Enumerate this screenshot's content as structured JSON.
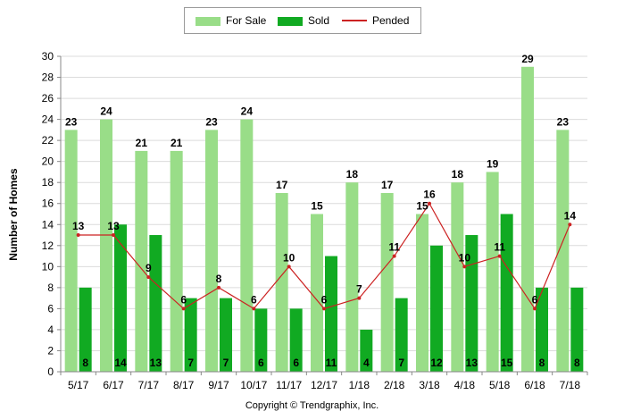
{
  "chart_data": {
    "type": "bar",
    "categories": [
      "5/17",
      "6/17",
      "7/17",
      "8/17",
      "9/17",
      "10/17",
      "11/17",
      "12/17",
      "1/18",
      "2/18",
      "3/18",
      "4/18",
      "5/18",
      "6/18",
      "7/18"
    ],
    "series": [
      {
        "name": "For Sale",
        "type": "bar",
        "color": "#99dd88",
        "values": [
          23,
          24,
          21,
          21,
          23,
          24,
          17,
          15,
          18,
          17,
          15,
          18,
          19,
          29,
          23
        ]
      },
      {
        "name": "Sold",
        "type": "bar",
        "color": "#11aa22",
        "values": [
          8,
          14,
          13,
          7,
          7,
          6,
          6,
          11,
          4,
          7,
          12,
          13,
          15,
          8,
          8
        ]
      },
      {
        "name": "Pended",
        "type": "line",
        "color": "#cc2222",
        "values": [
          13,
          13,
          9,
          6,
          8,
          6,
          10,
          6,
          7,
          11,
          16,
          10,
          11,
          6,
          14
        ]
      }
    ],
    "ylabel": "Number of Homes",
    "xlabel": "",
    "ylim": [
      0,
      30
    ],
    "yticks": [
      0,
      2,
      4,
      6,
      8,
      10,
      12,
      14,
      16,
      18,
      20,
      22,
      24,
      26,
      28,
      30
    ],
    "grid": true,
    "legend_position": "top-center"
  },
  "legend": {
    "for_sale": "For Sale",
    "sold": "Sold",
    "pended": "Pended"
  },
  "footer": {
    "copyright": "Copyright © Trendgraphix, Inc."
  }
}
